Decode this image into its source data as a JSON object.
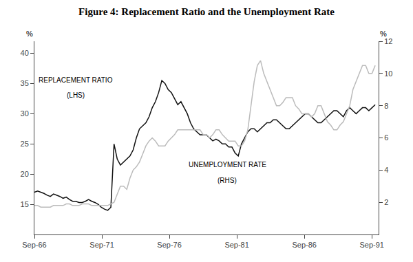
{
  "chart_data": {
    "type": "line",
    "title": "Figure 4: Replacement Ratio and the Unemployment Rate",
    "ylabel": "%",
    "y2label": "%",
    "annotations": [
      "REPLACEMENT RATIO",
      "(LHS)",
      "UNEMPLOYMENT RATE",
      "(RHS)"
    ],
    "grid": false,
    "x": [
      0,
      0.236,
      0.472,
      0.7079,
      0.9439,
      1.1799,
      1.4159,
      1.6519,
      1.8879,
      2.1238,
      2.3598,
      2.5958,
      2.8318,
      3.0678,
      3.3037,
      3.5397,
      3.7757,
      4.0117,
      4.2477,
      4.4836,
      4.7196,
      4.9556,
      5.1916,
      5.4276,
      5.6636,
      5.8995,
      6.1355,
      6.3715,
      6.6075,
      6.8435,
      7.0794,
      7.3154,
      7.5514,
      7.7874,
      8.0234,
      8.2593,
      8.4953,
      8.7313,
      8.9673,
      9.2033,
      9.4393,
      9.6752,
      9.9112,
      10.1472,
      10.3832,
      10.6192,
      10.8551,
      11.0911,
      11.3271,
      11.5631,
      11.7991,
      12.035,
      12.271,
      12.507,
      12.743,
      12.979,
      13.215,
      13.4509,
      13.6869,
      13.9229,
      14.1589,
      14.3949,
      14.6308,
      14.8668,
      15.1028,
      15.3388,
      15.5748,
      15.8107,
      16.0467,
      16.2827,
      16.5187,
      16.7547,
      16.9907,
      17.2266,
      17.4626,
      17.6986,
      17.9346,
      18.1706,
      18.4065,
      18.6425,
      18.8785,
      19.1145,
      19.3505,
      19.5864,
      19.8224,
      20.0584,
      20.2944,
      20.5304,
      20.7664,
      21.0023,
      21.2383,
      21.4743,
      21.7103,
      21.9463,
      22.1822,
      22.4182,
      22.6542,
      22.8902,
      23.1262,
      23.3621,
      23.5981,
      23.8341,
      24.0701,
      24.3061,
      24.5421,
      24.778,
      25.014,
      25.25
    ],
    "xlim": [
      0,
      25.5
    ],
    "xticks": [
      {
        "value": 0,
        "label": "Sep-66"
      },
      {
        "value": 5,
        "label": "Sep-71"
      },
      {
        "value": 10,
        "label": "Sep-76"
      },
      {
        "value": 15,
        "label": "Sep-81"
      },
      {
        "value": 20,
        "label": "Sep-86"
      },
      {
        "value": 25,
        "label": "Sep-91"
      }
    ],
    "ylim": [
      10,
      42
    ],
    "yticks": [
      15,
      20,
      25,
      30,
      35,
      40
    ],
    "y2lim": [
      0,
      12
    ],
    "y2ticks": [
      2,
      4,
      6,
      8,
      10,
      12
    ],
    "series": [
      {
        "color": "#111111",
        "values": [
          17.0,
          17.2,
          17.0,
          16.8,
          16.5,
          16.3,
          16.7,
          16.5,
          16.3,
          16.0,
          16.2,
          15.8,
          15.5,
          15.5,
          15.3,
          15.3,
          15.5,
          15.8,
          15.5,
          15.3,
          15.0,
          14.5,
          14.2,
          14.0,
          14.5,
          25.0,
          22.5,
          21.5,
          22.0,
          22.5,
          23.0,
          24.0,
          26.0,
          27.5,
          28.0,
          28.5,
          29.5,
          31.0,
          32.0,
          33.5,
          35.5,
          35.0,
          34.0,
          33.5,
          32.5,
          31.5,
          32.0,
          31.0,
          30.0,
          28.5,
          27.5,
          27.0,
          26.5,
          26.5,
          26.5,
          26.0,
          25.5,
          25.8,
          25.5,
          25.0,
          25.0,
          24.5,
          24.5,
          23.5,
          23.0,
          25.0,
          26.0,
          27.0,
          27.5,
          27.5,
          27.0,
          27.5,
          28.0,
          28.5,
          28.5,
          29.0,
          29.0,
          28.5,
          28.0,
          27.5,
          27.5,
          28.0,
          28.5,
          29.0,
          29.5,
          30.0,
          30.0,
          29.5,
          29.0,
          28.5,
          28.5,
          29.0,
          29.5,
          30.0,
          30.5,
          30.5,
          30.0,
          29.5,
          30.5,
          31.0,
          30.5,
          30.0,
          30.5,
          31.0,
          31.0,
          30.5,
          31.0,
          31.5
        ]
      },
      {
        "color": "#bbbbbb",
        "axis": "y2",
        "values": [
          1.8,
          1.8,
          1.7,
          1.7,
          1.7,
          1.7,
          1.8,
          1.8,
          1.8,
          1.8,
          1.9,
          1.9,
          1.8,
          1.8,
          1.8,
          1.9,
          1.9,
          1.9,
          1.8,
          1.8,
          1.8,
          1.8,
          1.8,
          1.8,
          1.9,
          2.0,
          2.5,
          3.0,
          3.0,
          2.8,
          3.5,
          4.0,
          4.2,
          4.5,
          5.0,
          5.5,
          5.8,
          6.0,
          5.8,
          5.5,
          5.5,
          5.5,
          5.8,
          6.0,
          6.2,
          6.5,
          6.5,
          6.5,
          6.5,
          6.5,
          6.5,
          6.5,
          6.5,
          6.2,
          6.2,
          6.0,
          6.2,
          6.5,
          6.5,
          6.2,
          6.0,
          5.8,
          5.8,
          5.8,
          5.5,
          5.5,
          5.8,
          6.5,
          8.0,
          9.5,
          10.5,
          10.8,
          10.0,
          9.5,
          9.0,
          8.5,
          8.0,
          8.0,
          8.2,
          8.5,
          8.5,
          8.5,
          8.0,
          7.8,
          7.5,
          7.5,
          7.5,
          7.3,
          7.5,
          8.0,
          8.0,
          7.5,
          7.0,
          6.8,
          6.5,
          6.5,
          6.8,
          7.0,
          7.5,
          8.0,
          9.0,
          9.5,
          10.0,
          10.5,
          10.5,
          10.0,
          10.0,
          10.5
        ]
      }
    ]
  }
}
